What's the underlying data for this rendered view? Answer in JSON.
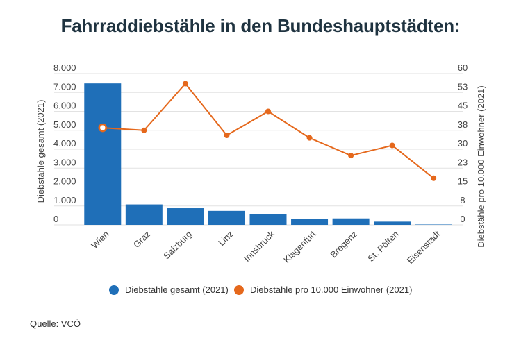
{
  "chart_data": {
    "type": "bar+line",
    "title": "Fahrraddiebstähle in den Bundeshauptstädten:",
    "categories": [
      "Wien",
      "Graz",
      "Salzburg",
      "Linz",
      "Innsbruck",
      "Klagenfurt",
      "Bregenz",
      "St. Pölten",
      "Eisenstadt"
    ],
    "series": [
      {
        "name": "Diebstähle gesamt (2021)",
        "type": "bar",
        "axis": "left",
        "color": "#1f6fb8",
        "values": [
          7480,
          1080,
          880,
          740,
          570,
          310,
          340,
          170,
          20
        ]
      },
      {
        "name": "Diebstähle pro 10.000 Einwohner (2021)",
        "type": "line",
        "axis": "right",
        "color": "#e5681c",
        "values": [
          38.5,
          37.5,
          56,
          35.5,
          45,
          34.5,
          27.5,
          31.5,
          18.5
        ]
      }
    ],
    "y_left": {
      "label": "Diebstähle gesamt (2021)",
      "ylim": [
        0,
        8000
      ],
      "ticks": [
        0,
        1000,
        2000,
        3000,
        4000,
        5000,
        6000,
        7000,
        8000
      ],
      "tick_labels": [
        "0",
        "1.000",
        "2.000",
        "3.000",
        "4.000",
        "5.000",
        "6.000",
        "7.000",
        "8.000"
      ]
    },
    "y_right": {
      "label": "Diebstähle pro 10.000 Einwohner (2021)",
      "ylim": [
        0,
        60
      ],
      "ticks": [
        0,
        7.5,
        15,
        22.5,
        30,
        37.5,
        45,
        52.5,
        60
      ],
      "tick_labels": [
        "0",
        "8",
        "15",
        "23",
        "30",
        "38",
        "45",
        "53",
        "60"
      ]
    },
    "grid": true,
    "legend": "bottom",
    "highlight_point_index": 0
  },
  "source": "Quelle: VCÖ"
}
